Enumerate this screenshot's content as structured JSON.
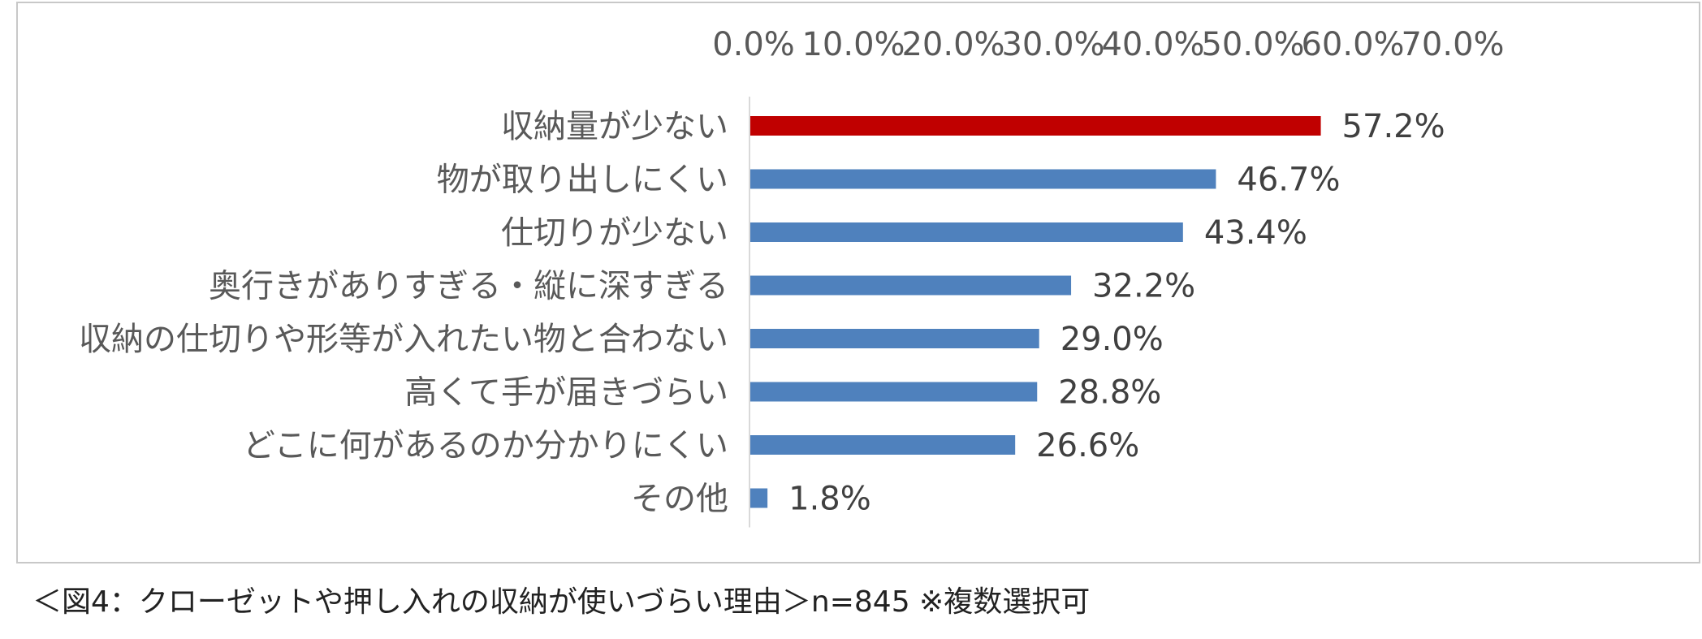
{
  "chart_data": {
    "type": "bar",
    "orientation": "horizontal",
    "categories": [
      "収納量が少ない",
      "物が取り出しにくい",
      "仕切りが少ない",
      "奥行きがありすぎる・縦に深すぎる",
      "収納の仕切りや形等が入れたい物と合わない",
      "高くて手が届きづらい",
      "どこに何があるのか分かりにくい",
      "その他"
    ],
    "values": [
      57.2,
      46.7,
      43.4,
      32.2,
      29.0,
      28.8,
      26.6,
      1.8
    ],
    "value_labels": [
      "57.2%",
      "46.7%",
      "43.4%",
      "32.2%",
      "29.0%",
      "28.8%",
      "26.6%",
      "1.8%"
    ],
    "xlim": [
      0,
      70
    ],
    "x_ticks": [
      0,
      10,
      20,
      30,
      40,
      50,
      60,
      70
    ],
    "x_tick_labels": [
      "0.0%",
      "10.0%",
      "20.0%",
      "30.0%",
      "40.0%",
      "50.0%",
      "60.0%",
      "70.0%"
    ],
    "x_axis_position": "top",
    "grid": false,
    "legend": "none",
    "highlight_color": "#c00000",
    "bar_color": "#4f81bd",
    "highlight_index": 0,
    "title": "",
    "xlabel": "",
    "ylabel": ""
  },
  "caption": "＜図4：クローゼットや押し入れの収納が使いづらい理由＞n=845 ※複数選択可"
}
